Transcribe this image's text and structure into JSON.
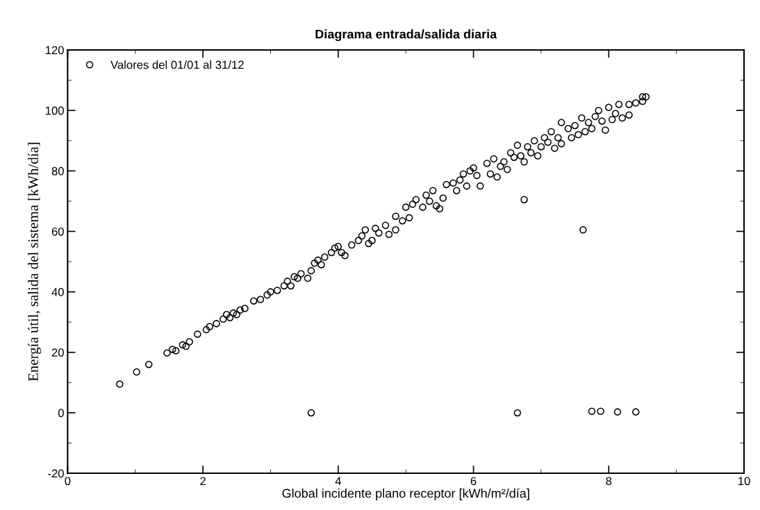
{
  "chart_data": {
    "type": "scatter",
    "title": "Diagrama entrada/salida diaria",
    "xlabel": "Global incidente plano receptor [kWh/m²/día]",
    "ylabel": "Energía útil, salida del sistema [kWh/día]",
    "xlim": [
      0,
      10
    ],
    "xticks": [
      0,
      2,
      4,
      6,
      8,
      10
    ],
    "ylim": [
      -20,
      120
    ],
    "yticks": [
      -20,
      0,
      20,
      40,
      60,
      80,
      100,
      120
    ],
    "grid": false,
    "legend": "top left",
    "marker": "circle",
    "series": [
      {
        "name": "Valores del 01/01 al 31/12",
        "color": "#000000",
        "x": [
          0.77,
          1.02,
          1.2,
          1.47,
          1.55,
          1.6,
          1.7,
          1.75,
          1.8,
          1.92,
          2.05,
          2.1,
          2.2,
          2.3,
          2.35,
          2.4,
          2.45,
          2.5,
          2.55,
          2.62,
          2.75,
          2.85,
          2.95,
          3.0,
          3.1,
          3.2,
          3.25,
          3.3,
          3.35,
          3.4,
          3.45,
          3.55,
          3.6,
          3.65,
          3.7,
          3.75,
          3.8,
          3.9,
          3.95,
          4.0,
          4.05,
          4.1,
          4.2,
          4.3,
          4.35,
          4.4,
          4.45,
          4.5,
          4.55,
          4.6,
          4.7,
          4.75,
          4.85,
          4.85,
          4.95,
          5.0,
          5.05,
          5.1,
          5.15,
          5.25,
          5.3,
          5.35,
          5.4,
          5.45,
          5.5,
          5.55,
          5.6,
          5.7,
          5.75,
          5.8,
          5.85,
          5.9,
          5.95,
          6.0,
          6.05,
          6.1,
          6.2,
          6.25,
          6.3,
          6.35,
          6.4,
          6.45,
          6.5,
          6.55,
          6.6,
          6.65,
          6.7,
          6.75,
          6.8,
          6.85,
          6.9,
          6.95,
          7.0,
          7.05,
          7.1,
          7.15,
          7.2,
          7.25,
          7.3,
          7.3,
          7.4,
          7.45,
          7.5,
          7.55,
          7.6,
          7.65,
          7.7,
          7.75,
          7.8,
          7.85,
          7.9,
          7.95,
          8.0,
          8.05,
          8.1,
          8.15,
          8.2,
          8.3,
          8.3,
          8.4,
          8.5,
          8.55,
          8.5,
          6.75,
          7.62,
          3.6,
          6.65,
          7.75,
          7.88,
          8.13,
          8.4
        ],
        "values": [
          9.5,
          13.5,
          16,
          19.8,
          21,
          20.5,
          22.5,
          22,
          23.5,
          26,
          27.5,
          28.5,
          29.5,
          31,
          32.5,
          31.5,
          33,
          32.5,
          34,
          34.5,
          37,
          37.5,
          39,
          40,
          40.5,
          42,
          43.5,
          42,
          45,
          44.5,
          46,
          44.5,
          47,
          49.5,
          50.5,
          49,
          51.5,
          53,
          54.5,
          55,
          53,
          52,
          55.5,
          57,
          58.5,
          60.5,
          56,
          57,
          61,
          59.5,
          62,
          59,
          65,
          60.5,
          63.5,
          68,
          64.5,
          69,
          70.5,
          68,
          72,
          70,
          73.5,
          68.5,
          67.5,
          71,
          75.5,
          76,
          73.5,
          77,
          79,
          75,
          80,
          81,
          78.5,
          75,
          82.5,
          79,
          84,
          78,
          81.5,
          83,
          80.5,
          86,
          84.5,
          88.5,
          85,
          83,
          88,
          86,
          90,
          85,
          88,
          91,
          89.5,
          93,
          87.5,
          91,
          96,
          89,
          94,
          91,
          95,
          92,
          97.5,
          93,
          96,
          94,
          98,
          100,
          96.5,
          93.5,
          101,
          97,
          99,
          102,
          97.5,
          102,
          98.5,
          102.5,
          104.5,
          104.5,
          103,
          70.5,
          60.5,
          0,
          0,
          0.5,
          0.5,
          0.3,
          0.3
        ]
      }
    ]
  }
}
